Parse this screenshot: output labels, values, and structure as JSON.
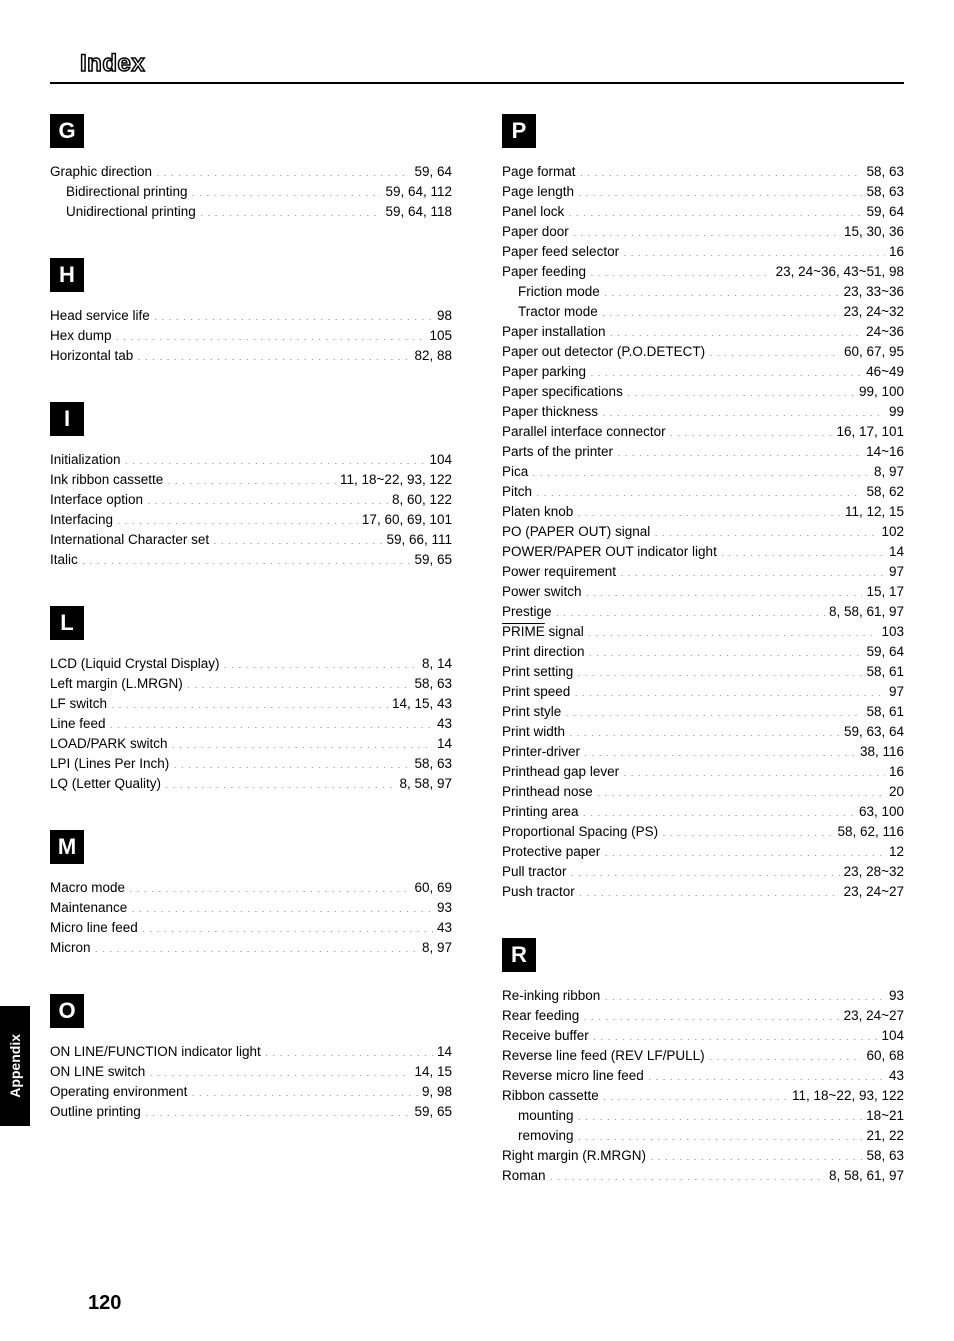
{
  "title": "Index",
  "sideTab": "Appendix",
  "pageNumber": "120",
  "colors": {
    "bg": "#ffffff",
    "fg": "#000000",
    "box_bg": "#000000",
    "box_fg": "#ffffff"
  },
  "leftSections": [
    {
      "letter": "G",
      "entries": [
        {
          "term": "Graphic direction",
          "pages": "59, 64",
          "sub": false
        },
        {
          "term": "Bidirectional printing",
          "pages": "59, 64, 112",
          "sub": true
        },
        {
          "term": "Unidirectional printing",
          "pages": "59, 64, 118",
          "sub": true
        }
      ]
    },
    {
      "letter": "H",
      "entries": [
        {
          "term": "Head service life",
          "pages": "98",
          "sub": false
        },
        {
          "term": "Hex dump",
          "pages": "105",
          "sub": false
        },
        {
          "term": "Horizontal tab",
          "pages": "82, 88",
          "sub": false
        }
      ]
    },
    {
      "letter": "I",
      "entries": [
        {
          "term": "Initialization",
          "pages": "104",
          "sub": false
        },
        {
          "term": "Ink ribbon cassette",
          "pages": "11, 18~22, 93, 122",
          "sub": false
        },
        {
          "term": "Interface option",
          "pages": "8, 60, 122",
          "sub": false
        },
        {
          "term": "Interfacing",
          "pages": "17, 60, 69, 101",
          "sub": false
        },
        {
          "term": "International Character set",
          "pages": "59, 66, 111",
          "sub": false
        },
        {
          "term": "Italic",
          "pages": "59, 65",
          "sub": false
        }
      ]
    },
    {
      "letter": "L",
      "entries": [
        {
          "term": "LCD (Liquid Crystal Display)",
          "pages": "8, 14",
          "sub": false
        },
        {
          "term": "Left margin (L.MRGN)",
          "pages": "58, 63",
          "sub": false
        },
        {
          "term": "LF switch",
          "pages": "14, 15, 43",
          "sub": false
        },
        {
          "term": "Line feed",
          "pages": "43",
          "sub": false
        },
        {
          "term": "LOAD/PARK switch",
          "pages": "14",
          "sub": false
        },
        {
          "term": "LPI (Lines Per Inch)",
          "pages": "58, 63",
          "sub": false
        },
        {
          "term": "LQ (Letter Quality)",
          "pages": "8, 58, 97",
          "sub": false
        }
      ]
    },
    {
      "letter": "M",
      "entries": [
        {
          "term": "Macro mode",
          "pages": "60, 69",
          "sub": false
        },
        {
          "term": "Maintenance",
          "pages": "93",
          "sub": false
        },
        {
          "term": "Micro line feed",
          "pages": "43",
          "sub": false
        },
        {
          "term": "Micron",
          "pages": "8, 97",
          "sub": false
        }
      ]
    },
    {
      "letter": "O",
      "entries": [
        {
          "term": "ON LINE/FUNCTION indicator light",
          "pages": "14",
          "sub": false
        },
        {
          "term": "ON LINE switch",
          "pages": "14, 15",
          "sub": false
        },
        {
          "term": "Operating environment",
          "pages": "9, 98",
          "sub": false
        },
        {
          "term": "Outline printing",
          "pages": "59, 65",
          "sub": false
        }
      ]
    }
  ],
  "rightSections": [
    {
      "letter": "P",
      "entries": [
        {
          "term": "Page format",
          "pages": "58, 63",
          "sub": false
        },
        {
          "term": "Page length",
          "pages": "58, 63",
          "sub": false
        },
        {
          "term": "Panel lock",
          "pages": "59, 64",
          "sub": false
        },
        {
          "term": "Paper door",
          "pages": "15, 30, 36",
          "sub": false
        },
        {
          "term": "Paper feed selector",
          "pages": "16",
          "sub": false
        },
        {
          "term": "Paper feeding",
          "pages": "23, 24~36, 43~51, 98",
          "sub": false
        },
        {
          "term": "Friction mode",
          "pages": "23, 33~36",
          "sub": true
        },
        {
          "term": "Tractor mode",
          "pages": "23, 24~32",
          "sub": true
        },
        {
          "term": "Paper installation",
          "pages": "24~36",
          "sub": false
        },
        {
          "term": "Paper out detector (P.O.DETECT)",
          "pages": "60, 67, 95",
          "sub": false
        },
        {
          "term": "Paper parking",
          "pages": "46~49",
          "sub": false
        },
        {
          "term": "Paper specifications",
          "pages": "99, 100",
          "sub": false
        },
        {
          "term": "Paper thickness",
          "pages": "99",
          "sub": false
        },
        {
          "term": "Parallel interface connector",
          "pages": "16, 17, 101",
          "sub": false
        },
        {
          "term": "Parts of the printer",
          "pages": "14~16",
          "sub": false
        },
        {
          "term": "Pica",
          "pages": "8, 97",
          "sub": false
        },
        {
          "term": "Pitch",
          "pages": "58, 62",
          "sub": false
        },
        {
          "term": "Platen knob",
          "pages": "11, 12, 15",
          "sub": false
        },
        {
          "term": "PO (PAPER OUT) signal",
          "pages": "102",
          "sub": false
        },
        {
          "term": "POWER/PAPER OUT indicator light",
          "pages": "14",
          "sub": false
        },
        {
          "term": "Power requirement",
          "pages": "97",
          "sub": false
        },
        {
          "term": "Power switch",
          "pages": "15, 17",
          "sub": false
        },
        {
          "term": "Prestige",
          "pages": "8, 58, 61, 97",
          "sub": false
        },
        {
          "term": "PRIME signal",
          "pages": "103",
          "sub": false,
          "overline": "PRIME"
        },
        {
          "term": "Print direction",
          "pages": "59, 64",
          "sub": false
        },
        {
          "term": "Print setting",
          "pages": "58, 61",
          "sub": false
        },
        {
          "term": "Print speed",
          "pages": "97",
          "sub": false
        },
        {
          "term": "Print style",
          "pages": "58, 61",
          "sub": false
        },
        {
          "term": "Print width",
          "pages": "59, 63, 64",
          "sub": false
        },
        {
          "term": "Printer-driver",
          "pages": "38, 116",
          "sub": false
        },
        {
          "term": "Printhead gap lever",
          "pages": "16",
          "sub": false
        },
        {
          "term": "Printhead nose",
          "pages": "20",
          "sub": false
        },
        {
          "term": "Printing area",
          "pages": "63, 100",
          "sub": false
        },
        {
          "term": "Proportional Spacing (PS)",
          "pages": "58, 62, 116",
          "sub": false
        },
        {
          "term": "Protective paper",
          "pages": "12",
          "sub": false
        },
        {
          "term": "Pull tractor",
          "pages": "23, 28~32",
          "sub": false
        },
        {
          "term": "Push tractor",
          "pages": "23, 24~27",
          "sub": false
        }
      ]
    },
    {
      "letter": "R",
      "entries": [
        {
          "term": "Re-inking ribbon",
          "pages": "93",
          "sub": false
        },
        {
          "term": "Rear feeding",
          "pages": "23, 24~27",
          "sub": false
        },
        {
          "term": "Receive buffer",
          "pages": "104",
          "sub": false
        },
        {
          "term": "Reverse line feed (REV LF/PULL)",
          "pages": "60, 68",
          "sub": false
        },
        {
          "term": "Reverse micro line feed",
          "pages": "43",
          "sub": false
        },
        {
          "term": "Ribbon cassette",
          "pages": "11, 18~22, 93, 122",
          "sub": false
        },
        {
          "term": "mounting",
          "pages": "18~21",
          "sub": true
        },
        {
          "term": "removing",
          "pages": "21, 22",
          "sub": true
        },
        {
          "term": "Right margin (R.MRGN)",
          "pages": "58, 63",
          "sub": false
        },
        {
          "term": "Roman",
          "pages": "8, 58, 61, 97",
          "sub": false
        }
      ]
    }
  ]
}
